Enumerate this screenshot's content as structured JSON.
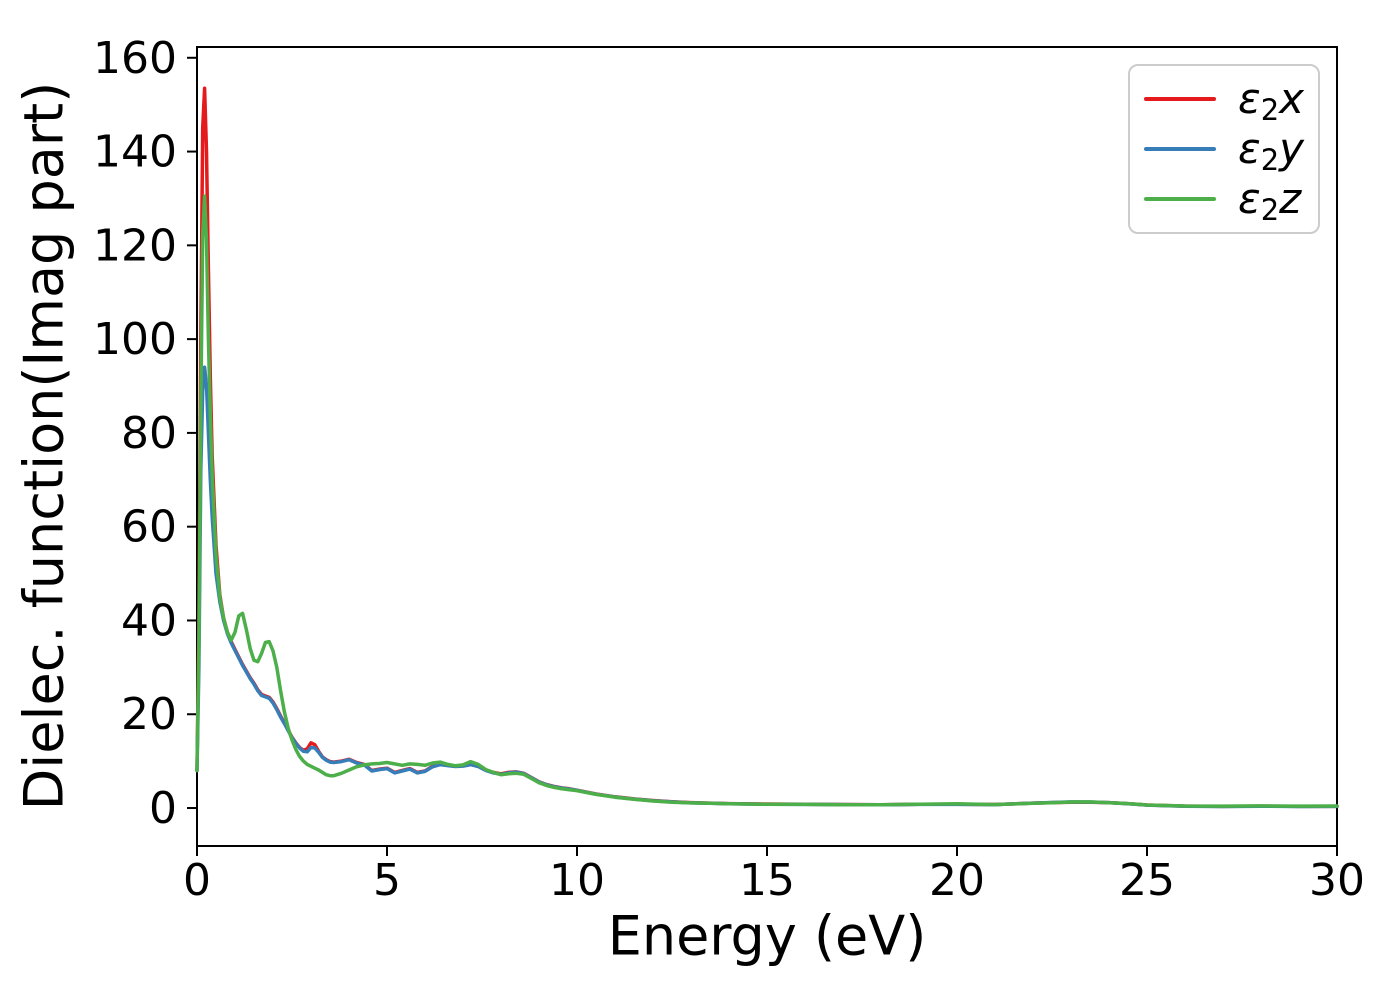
{
  "chart_data": {
    "type": "line",
    "title": "",
    "xlabel": "Energy (eV)",
    "ylabel": "Dielec. function(Imag part)",
    "xlim": [
      0,
      30
    ],
    "ylim": [
      -8.1,
      162.3
    ],
    "xticks": [
      0,
      5,
      10,
      15,
      20,
      25,
      30
    ],
    "yticks": [
      0,
      20,
      40,
      60,
      80,
      100,
      120,
      140,
      160
    ],
    "grid": false,
    "legend_position": "upper right",
    "axis_color": "#000000",
    "x": [
      0,
      0.05,
      0.1,
      0.15,
      0.2,
      0.25,
      0.3,
      0.35,
      0.4,
      0.5,
      0.6,
      0.7,
      0.8,
      0.9,
      1.0,
      1.1,
      1.2,
      1.3,
      1.4,
      1.5,
      1.6,
      1.7,
      1.8,
      1.9,
      2.0,
      2.1,
      2.2,
      2.3,
      2.4,
      2.5,
      2.6,
      2.7,
      2.8,
      2.9,
      3.0,
      3.1,
      3.2,
      3.3,
      3.4,
      3.5,
      3.6,
      3.8,
      4.0,
      4.2,
      4.4,
      4.6,
      4.8,
      5.0,
      5.2,
      5.4,
      5.6,
      5.8,
      6.0,
      6.2,
      6.4,
      6.6,
      6.8,
      7.0,
      7.2,
      7.4,
      7.6,
      7.8,
      8.0,
      8.2,
      8.4,
      8.6,
      8.8,
      9.0,
      9.2,
      9.4,
      9.6,
      9.8,
      10.0,
      10.5,
      11.0,
      11.5,
      12.0,
      12.5,
      13.0,
      13.5,
      14.0,
      15.0,
      16.0,
      17.0,
      18.0,
      19.0,
      20.0,
      21.0,
      22.0,
      22.5,
      23.0,
      23.5,
      24.0,
      24.5,
      25.0,
      26.0,
      27.0,
      28.0,
      29.0,
      30.0
    ],
    "series": [
      {
        "name": "eps2x",
        "label": "ε2x",
        "symbol": "ε",
        "sub": "2",
        "axis": "x",
        "color": "#e41a1c",
        "peak": {
          "x": 0.2,
          "y": 153.5
        },
        "values": [
          8,
          40,
          100,
          145,
          153.5,
          140,
          115,
          92,
          75,
          56,
          45.5,
          40.5,
          37.5,
          35.5,
          33.8,
          32.2,
          30.6,
          29.2,
          27.8,
          26.6,
          25.2,
          24.2,
          23.9,
          23.6,
          22.6,
          21.2,
          19.6,
          18.1,
          16.6,
          15.1,
          13.9,
          12.9,
          12.3,
          12.6,
          13.9,
          13.5,
          12.1,
          10.9,
          10.3,
          9.9,
          9.8,
          10.0,
          10.4,
          9.7,
          9.3,
          8.0,
          8.3,
          8.5,
          7.6,
          8.0,
          8.4,
          7.6,
          7.9,
          8.9,
          9.3,
          9.1,
          8.9,
          9.0,
          9.3,
          8.9,
          8.1,
          7.6,
          7.3,
          7.6,
          7.7,
          7.4,
          6.5,
          5.6,
          5.0,
          4.6,
          4.3,
          4.1,
          3.8,
          3.0,
          2.4,
          1.95,
          1.6,
          1.35,
          1.15,
          1.05,
          0.95,
          0.85,
          0.8,
          0.75,
          0.7,
          0.8,
          0.8,
          0.75,
          1.05,
          1.15,
          1.25,
          1.25,
          1.15,
          0.95,
          0.65,
          0.4,
          0.35,
          0.4,
          0.35,
          0.35
        ]
      },
      {
        "name": "eps2y",
        "label": "ε2y",
        "symbol": "ε",
        "sub": "2",
        "axis": "y",
        "color": "#377eb8",
        "peak": {
          "x": 0.25,
          "y": 94
        },
        "values": [
          8,
          30,
          72,
          89,
          94,
          90,
          80,
          70,
          62,
          50,
          44,
          40,
          37.2,
          35.2,
          33.6,
          32.0,
          30.4,
          29.0,
          27.6,
          26.4,
          25.0,
          24.0,
          23.7,
          23.4,
          22.4,
          21.0,
          19.4,
          18.0,
          16.5,
          15.0,
          13.8,
          12.8,
          12.1,
          12.0,
          12.9,
          12.8,
          11.9,
          10.8,
          10.2,
          9.8,
          9.7,
          9.9,
          10.3,
          9.6,
          9.2,
          7.9,
          8.2,
          8.4,
          7.5,
          7.9,
          8.3,
          7.5,
          7.8,
          8.8,
          9.25,
          9.05,
          8.85,
          8.95,
          9.25,
          8.85,
          8.0,
          7.5,
          7.2,
          7.5,
          7.65,
          7.35,
          6.45,
          5.55,
          4.95,
          4.55,
          4.25,
          4.05,
          3.75,
          2.95,
          2.35,
          1.9,
          1.55,
          1.3,
          1.1,
          1.0,
          0.9,
          0.8,
          0.78,
          0.72,
          0.68,
          0.78,
          0.78,
          0.72,
          1.05,
          1.18,
          1.3,
          1.28,
          1.15,
          0.92,
          0.62,
          0.38,
          0.33,
          0.38,
          0.33,
          0.35
        ]
      },
      {
        "name": "eps2z",
        "label": "ε2z",
        "symbol": "ε",
        "sub": "2",
        "axis": "z",
        "color": "#4daf4a",
        "peak": {
          "x": 0.2,
          "y": 130.5
        },
        "values": [
          8,
          35,
          85,
          122,
          130.5,
          121,
          100,
          84,
          71,
          54,
          45,
          40.5,
          37.5,
          35.8,
          37.5,
          41.0,
          41.5,
          38.0,
          34.0,
          31.5,
          31.2,
          33.0,
          35.3,
          35.5,
          33.5,
          30.0,
          25.0,
          20.5,
          17.0,
          14.5,
          12.5,
          11.0,
          10.0,
          9.3,
          8.9,
          8.5,
          8.1,
          7.6,
          7.1,
          6.9,
          6.9,
          7.4,
          8.1,
          8.8,
          9.2,
          9.4,
          9.5,
          9.7,
          9.4,
          9.1,
          9.4,
          9.3,
          9.1,
          9.6,
          9.8,
          9.3,
          9.0,
          9.2,
          9.9,
          9.3,
          8.2,
          7.6,
          7.1,
          7.3,
          7.4,
          7.2,
          6.3,
          5.4,
          4.8,
          4.4,
          4.1,
          3.9,
          3.7,
          2.9,
          2.3,
          1.85,
          1.5,
          1.25,
          1.1,
          1.0,
          0.92,
          0.8,
          0.78,
          0.7,
          0.68,
          0.82,
          0.9,
          0.72,
          1.02,
          1.12,
          1.28,
          1.3,
          1.12,
          0.95,
          0.65,
          0.42,
          0.4,
          0.45,
          0.4,
          0.42
        ]
      }
    ]
  }
}
